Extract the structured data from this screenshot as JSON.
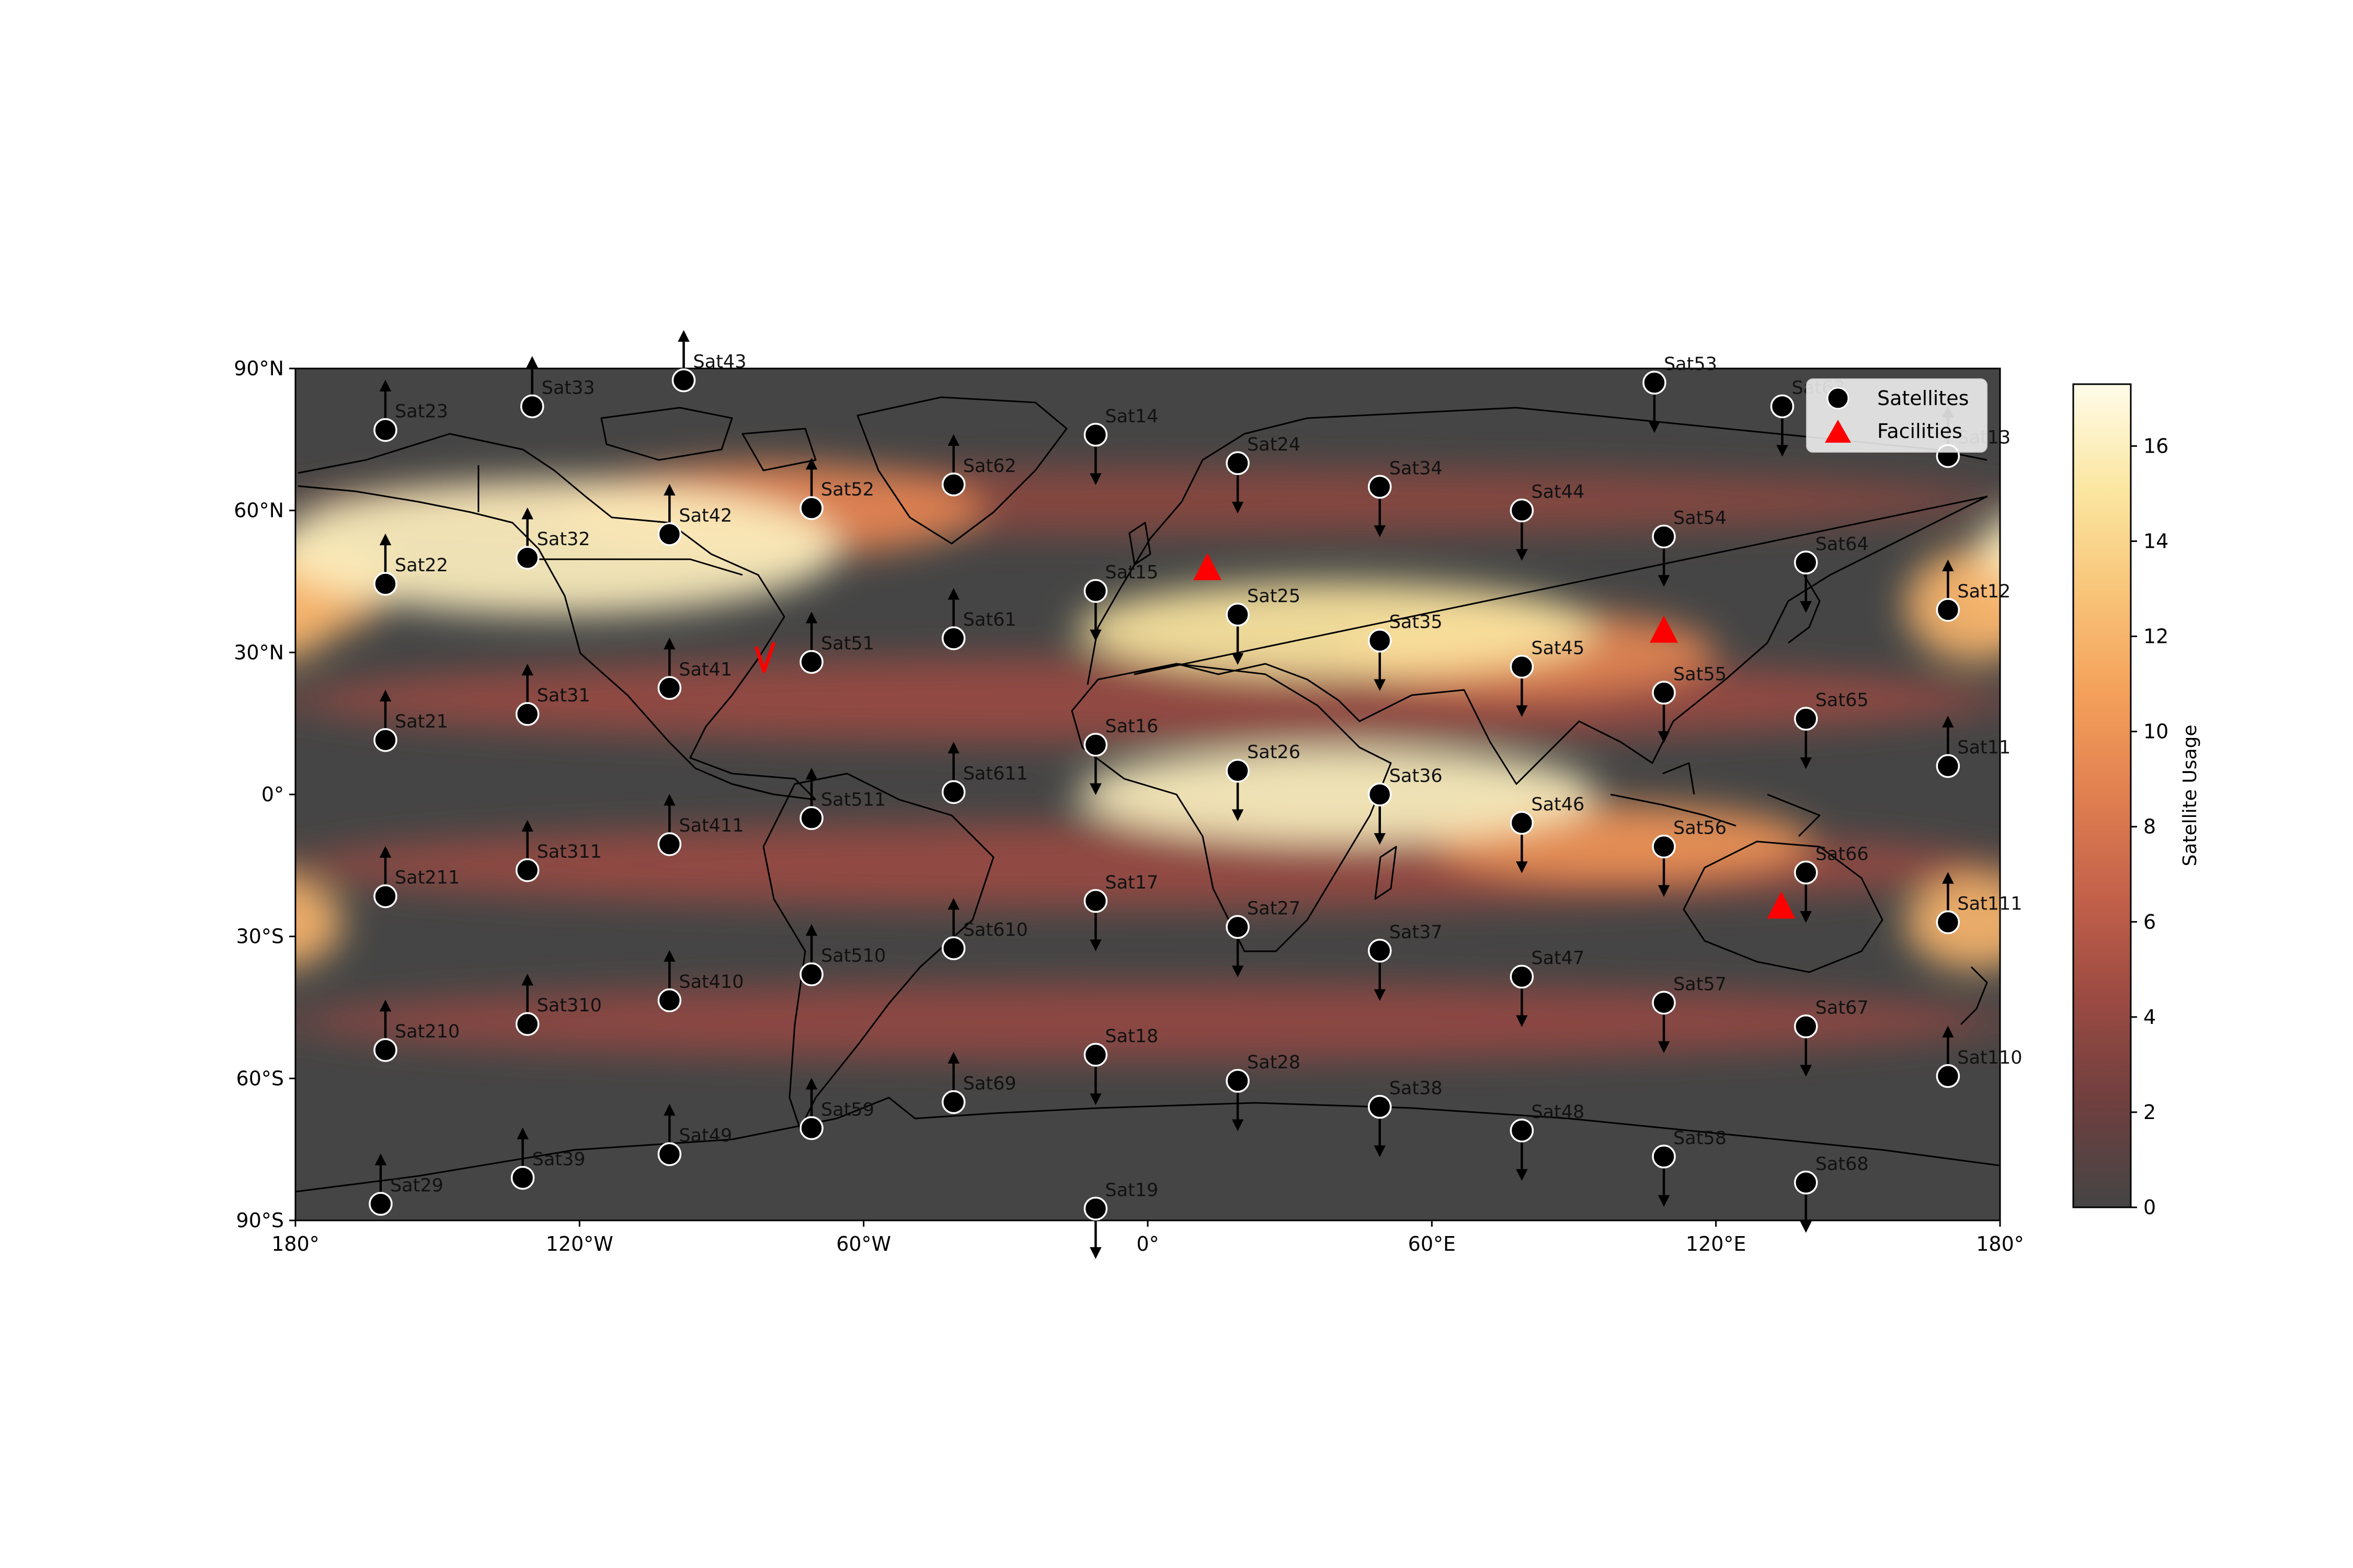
{
  "map": {
    "projection": "PlateCarree",
    "extent": {
      "lon": [
        -180,
        180
      ],
      "lat": [
        -90,
        90
      ]
    },
    "x_ticks": [
      "180°",
      "120°W",
      "60°W",
      "0°",
      "60°E",
      "120°E",
      "180°"
    ],
    "y_ticks": [
      "90°N",
      "60°N",
      "30°N",
      "0°",
      "30°S",
      "60°S",
      "90°S"
    ],
    "background_color": "#454545"
  },
  "legend": {
    "location": "upper-right",
    "items": [
      {
        "label": "Satellites",
        "marker": "circle",
        "color": "#000000"
      },
      {
        "label": "Facilities",
        "marker": "triangle",
        "color": "#ff0000"
      }
    ]
  },
  "colorbar": {
    "label": "Satellite Usage",
    "min": 0,
    "max": 17.3,
    "ticks": [
      "0",
      "2",
      "4",
      "6",
      "8",
      "10",
      "12",
      "14",
      "16"
    ],
    "colormap": "afmhot-like",
    "stops": [
      "#454545",
      "#6e3f3f",
      "#9a4a42",
      "#c2604a",
      "#e07f50",
      "#f4a05a",
      "#f8c579",
      "#fbe7a2",
      "#fffbe9"
    ]
  },
  "facilities": [
    {
      "lon": -80.6,
      "lat": 28.5,
      "marker": "tick"
    },
    {
      "lon": 12.6,
      "lat": 47.7
    },
    {
      "lon": 109.0,
      "lat": 34.5
    },
    {
      "lon": 133.8,
      "lat": -23.8
    }
  ],
  "satellites": [
    {
      "name": "Sat23",
      "lon": -161,
      "lat": 77,
      "dir": "up"
    },
    {
      "name": "Sat33",
      "lon": -130,
      "lat": 82,
      "dir": "up"
    },
    {
      "name": "Sat43",
      "lon": -98,
      "lat": 87.5,
      "dir": "up"
    },
    {
      "name": "Sat14",
      "lon": -11,
      "lat": 76,
      "dir": "down"
    },
    {
      "name": "Sat24",
      "lon": 19,
      "lat": 70,
      "dir": "down"
    },
    {
      "name": "Sat34",
      "lon": 49,
      "lat": 65,
      "dir": "down"
    },
    {
      "name": "Sat44",
      "lon": 79,
      "lat": 60,
      "dir": "down"
    },
    {
      "name": "Sat53",
      "lon": 107,
      "lat": 87,
      "dir": "down"
    },
    {
      "name": "Sat63",
      "lon": 134,
      "lat": 82,
      "dir": "down"
    },
    {
      "name": "Sat13",
      "lon": 169,
      "lat": 71.5,
      "dir": "up"
    },
    {
      "name": "Sat22",
      "lon": -161,
      "lat": 44.5,
      "dir": "up"
    },
    {
      "name": "Sat32",
      "lon": -131,
      "lat": 50,
      "dir": "up"
    },
    {
      "name": "Sat42",
      "lon": -101,
      "lat": 55,
      "dir": "up"
    },
    {
      "name": "Sat52",
      "lon": -71,
      "lat": 60.5,
      "dir": "up"
    },
    {
      "name": "Sat62",
      "lon": -41,
      "lat": 65.5,
      "dir": "up"
    },
    {
      "name": "Sat15",
      "lon": -11,
      "lat": 43,
      "dir": "down"
    },
    {
      "name": "Sat25",
      "lon": 19,
      "lat": 38,
      "dir": "down"
    },
    {
      "name": "Sat35",
      "lon": 49,
      "lat": 32.5,
      "dir": "down"
    },
    {
      "name": "Sat45",
      "lon": 79,
      "lat": 27,
      "dir": "down"
    },
    {
      "name": "Sat54",
      "lon": 109,
      "lat": 54.5,
      "dir": "down"
    },
    {
      "name": "Sat55",
      "lon": 109,
      "lat": 21.5,
      "dir": "down"
    },
    {
      "name": "Sat64",
      "lon": 139,
      "lat": 49,
      "dir": "down"
    },
    {
      "name": "Sat65",
      "lon": 139,
      "lat": 16,
      "dir": "down"
    },
    {
      "name": "Sat12",
      "lon": 169,
      "lat": 39,
      "dir": "up"
    },
    {
      "name": "Sat21",
      "lon": -161,
      "lat": 11.5,
      "dir": "up"
    },
    {
      "name": "Sat31",
      "lon": -131,
      "lat": 17,
      "dir": "up"
    },
    {
      "name": "Sat41",
      "lon": -101,
      "lat": 22.5,
      "dir": "up"
    },
    {
      "name": "Sat51",
      "lon": -71,
      "lat": 28,
      "dir": "up"
    },
    {
      "name": "Sat61",
      "lon": -41,
      "lat": 33,
      "dir": "up"
    },
    {
      "name": "Sat16",
      "lon": -11,
      "lat": 10.5,
      "dir": "down"
    },
    {
      "name": "Sat26",
      "lon": 19,
      "lat": 5,
      "dir": "down"
    },
    {
      "name": "Sat36",
      "lon": 49,
      "lat": 0,
      "dir": "down"
    },
    {
      "name": "Sat46",
      "lon": 79,
      "lat": -6,
      "dir": "down"
    },
    {
      "name": "Sat56",
      "lon": 109,
      "lat": -11,
      "dir": "down"
    },
    {
      "name": "Sat66",
      "lon": 139,
      "lat": -16.5,
      "dir": "down"
    },
    {
      "name": "Sat11",
      "lon": 169,
      "lat": 6,
      "dir": "up"
    },
    {
      "name": "Sat211",
      "lon": -161,
      "lat": -21.5,
      "dir": "up"
    },
    {
      "name": "Sat311",
      "lon": -131,
      "lat": -16,
      "dir": "up"
    },
    {
      "name": "Sat411",
      "lon": -101,
      "lat": -10.5,
      "dir": "up"
    },
    {
      "name": "Sat511",
      "lon": -71,
      "lat": -5,
      "dir": "up"
    },
    {
      "name": "Sat611",
      "lon": -41,
      "lat": 0.5,
      "dir": "up"
    },
    {
      "name": "Sat17",
      "lon": -11,
      "lat": -22.5,
      "dir": "down"
    },
    {
      "name": "Sat27",
      "lon": 19,
      "lat": -28,
      "dir": "down"
    },
    {
      "name": "Sat37",
      "lon": 49,
      "lat": -33,
      "dir": "down"
    },
    {
      "name": "Sat47",
      "lon": 79,
      "lat": -38.5,
      "dir": "down"
    },
    {
      "name": "Sat57",
      "lon": 109,
      "lat": -44,
      "dir": "down"
    },
    {
      "name": "Sat67",
      "lon": 139,
      "lat": -49,
      "dir": "down"
    },
    {
      "name": "Sat111",
      "lon": 169,
      "lat": -27,
      "dir": "up"
    },
    {
      "name": "Sat210",
      "lon": -161,
      "lat": -54,
      "dir": "up"
    },
    {
      "name": "Sat310",
      "lon": -131,
      "lat": -48.5,
      "dir": "up"
    },
    {
      "name": "Sat410",
      "lon": -101,
      "lat": -43.5,
      "dir": "up"
    },
    {
      "name": "Sat510",
      "lon": -71,
      "lat": -38,
      "dir": "up"
    },
    {
      "name": "Sat610",
      "lon": -41,
      "lat": -32.5,
      "dir": "up"
    },
    {
      "name": "Sat18",
      "lon": -11,
      "lat": -55,
      "dir": "down"
    },
    {
      "name": "Sat28",
      "lon": 19,
      "lat": -60.5,
      "dir": "down"
    },
    {
      "name": "Sat38",
      "lon": 49,
      "lat": -66,
      "dir": "down"
    },
    {
      "name": "Sat48",
      "lon": 79,
      "lat": -71,
      "dir": "down"
    },
    {
      "name": "Sat58",
      "lon": 109,
      "lat": -76.5,
      "dir": "down"
    },
    {
      "name": "Sat68",
      "lon": 139,
      "lat": -82,
      "dir": "down"
    },
    {
      "name": "Sat110",
      "lon": 169,
      "lat": -59.5,
      "dir": "up"
    },
    {
      "name": "Sat29",
      "lon": -162,
      "lat": -86.5,
      "dir": "up"
    },
    {
      "name": "Sat39",
      "lon": -132,
      "lat": -81,
      "dir": "up"
    },
    {
      "name": "Sat49",
      "lon": -101,
      "lat": -76,
      "dir": "up"
    },
    {
      "name": "Sat59",
      "lon": -71,
      "lat": -70.5,
      "dir": "up"
    },
    {
      "name": "Sat69",
      "lon": -41,
      "lat": -65,
      "dir": "up"
    },
    {
      "name": "Sat19",
      "lon": -11,
      "lat": -87.5,
      "dir": "down"
    }
  ],
  "usage_bands": [
    {
      "lon": -125,
      "lat": 52,
      "rlon": 60,
      "rlat": 14,
      "value": 16
    },
    {
      "lon": -80,
      "lat": 60,
      "rlon": 45,
      "rlat": 10,
      "value": 9
    },
    {
      "lon": 40,
      "lat": 35,
      "rlon": 55,
      "rlat": 10,
      "value": 15
    },
    {
      "lon": 80,
      "lat": 30,
      "rlon": 40,
      "rlat": 9,
      "value": 9
    },
    {
      "lon": 40,
      "lat": 0,
      "rlon": 55,
      "rlat": 10,
      "value": 16
    },
    {
      "lon": 100,
      "lat": -10,
      "rlon": 40,
      "rlat": 8,
      "value": 10
    },
    {
      "lon": 175,
      "lat": 40,
      "rlon": 15,
      "rlat": 12,
      "value": 12
    },
    {
      "lon": 175,
      "lat": -27,
      "rlon": 15,
      "rlat": 10,
      "value": 12
    },
    {
      "lon": -175,
      "lat": 44,
      "rlon": 15,
      "rlat": 10,
      "value": 12
    },
    {
      "lon": 0,
      "lat": 20,
      "rlon": 180,
      "rlat": 9,
      "value": 4.2
    },
    {
      "lon": 0,
      "lat": -15,
      "rlon": 180,
      "rlat": 9,
      "value": 4.2
    },
    {
      "lon": 0,
      "lat": -48,
      "rlon": 180,
      "rlat": 8,
      "value": 4
    },
    {
      "lon": 0,
      "lat": 62,
      "rlon": 180,
      "rlat": 7,
      "value": 3.5
    }
  ]
}
